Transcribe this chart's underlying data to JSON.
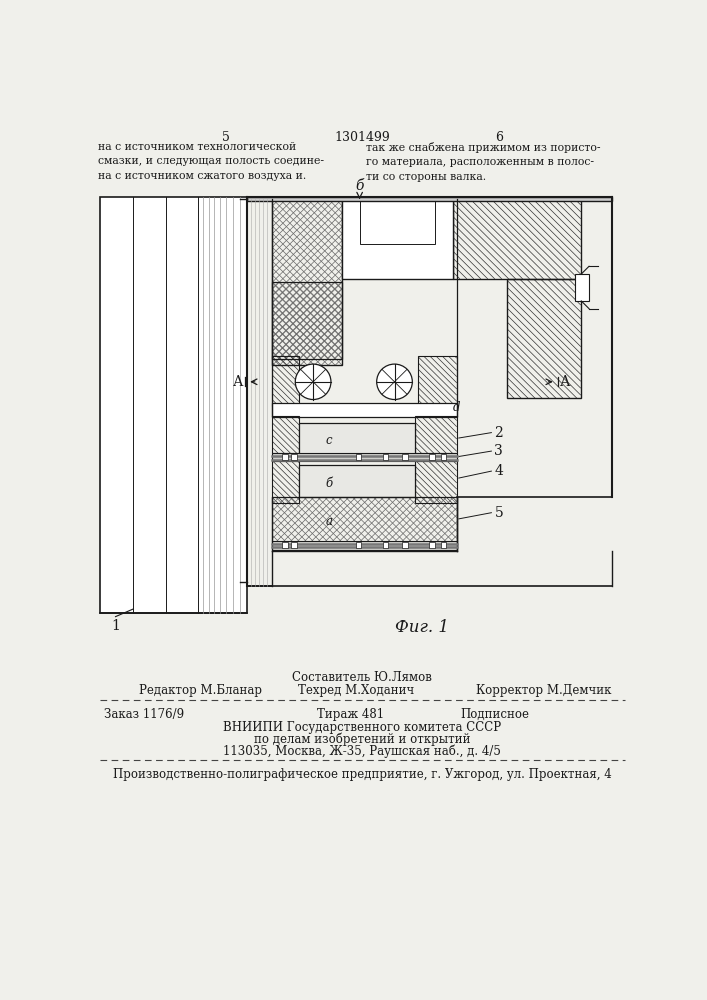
{
  "bg_color": "#f0f0eb",
  "page_width": 7.07,
  "page_height": 10.0,
  "top_text_left": "на с источником технологической\nсмазки, и следующая полость соедине-\nна с источником сжатого воздуха и.",
  "top_text_right": "так же снабжена прижимом из пористо-\nго материала, расположенным в полос-\nти со стороны валка.",
  "page_num_left": "5",
  "page_num_right": "6",
  "patent_num": "1301499",
  "fig_label": "Фиг. 1",
  "label_6": "б",
  "label_A_left": "А",
  "label_A_right": "А",
  "label_1": "1",
  "label_2": "2",
  "label_3": "3",
  "label_4": "4",
  "label_5": "5",
  "label_a": "а",
  "label_b": "б",
  "label_c": "c",
  "label_d": "d",
  "editor_line": "Редактор М.Бланар",
  "composer_line": "Составитель Ю.Лямов",
  "techred_line": "Техред М.Ходанич",
  "corrector_line": "Корректор М.Демчик",
  "order_line": "Заказ 1176/9",
  "tirazh_line": "Тираж 481",
  "podpisnoe_line": "Подписное",
  "vnipi_line1": "ВНИИПИ Государственного комитета СССР",
  "vnipi_line2": "по делам изобретений и открытий",
  "vnipi_line3": "113035, Москва, Ж-35, Раушская наб., д. 4/5",
  "production_line": "Производственно-полиграфическое предприятие, г. Ужгород, ул. Проектная, 4"
}
